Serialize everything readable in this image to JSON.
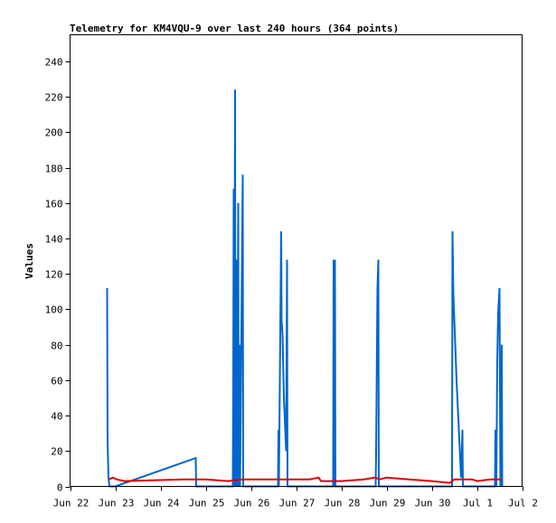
{
  "chart_data": {
    "type": "line",
    "title": "Telemetry for KM4VQU-9 over last 240 hours (364 points)",
    "xlabel": "",
    "ylabel": "Values",
    "ylim": [
      0,
      255
    ],
    "yticks": [
      0,
      20,
      40,
      60,
      80,
      100,
      120,
      140,
      160,
      180,
      200,
      220,
      240
    ],
    "xlim": [
      0,
      10
    ],
    "xticks": [
      {
        "x": 0,
        "label": "Jun 22"
      },
      {
        "x": 1,
        "label": "Jun 23"
      },
      {
        "x": 2,
        "label": "Jun 24"
      },
      {
        "x": 3,
        "label": "Jun 25"
      },
      {
        "x": 4,
        "label": "Jun 26"
      },
      {
        "x": 5,
        "label": "Jun 27"
      },
      {
        "x": 6,
        "label": "Jun 28"
      },
      {
        "x": 7,
        "label": "Jun 29"
      },
      {
        "x": 8,
        "label": "Jun 30"
      },
      {
        "x": 9,
        "label": "Jul 1"
      },
      {
        "x": 10,
        "label": "Jul 2"
      }
    ],
    "grid": false,
    "legend": "none",
    "series": [
      {
        "color": "#0066cc",
        "points": [
          [
            0.82,
            112
          ],
          [
            0.83,
            25
          ],
          [
            0.85,
            5
          ],
          [
            0.87,
            0
          ],
          [
            1.0,
            0
          ],
          [
            2.78,
            16
          ],
          [
            2.79,
            0
          ],
          [
            3.6,
            0
          ],
          [
            3.61,
            57
          ],
          [
            3.62,
            168
          ],
          [
            3.63,
            0
          ],
          [
            3.65,
            224
          ],
          [
            3.66,
            0
          ],
          [
            3.69,
            128
          ],
          [
            3.7,
            0
          ],
          [
            3.72,
            160
          ],
          [
            3.73,
            0
          ],
          [
            3.75,
            80
          ],
          [
            3.76,
            0
          ],
          [
            3.82,
            176
          ],
          [
            3.83,
            0
          ],
          [
            4.6,
            0
          ],
          [
            4.61,
            32
          ],
          [
            4.62,
            0
          ],
          [
            4.67,
            144
          ],
          [
            4.68,
            93
          ],
          [
            4.7,
            86
          ],
          [
            4.73,
            50
          ],
          [
            4.78,
            20
          ],
          [
            4.8,
            128
          ],
          [
            4.81,
            0
          ],
          [
            5.82,
            0
          ],
          [
            5.83,
            128
          ],
          [
            5.84,
            0
          ],
          [
            5.86,
            128
          ],
          [
            5.87,
            0
          ],
          [
            6.76,
            0
          ],
          [
            6.77,
            18
          ],
          [
            6.8,
            112
          ],
          [
            6.82,
            128
          ],
          [
            6.83,
            0
          ],
          [
            8.45,
            0
          ],
          [
            8.46,
            144
          ],
          [
            8.48,
            108
          ],
          [
            8.55,
            60
          ],
          [
            8.65,
            5
          ],
          [
            8.68,
            32
          ],
          [
            8.69,
            0
          ],
          [
            9.4,
            0
          ],
          [
            9.41,
            32
          ],
          [
            9.43,
            0
          ],
          [
            9.45,
            70
          ],
          [
            9.47,
            98
          ],
          [
            9.5,
            112
          ],
          [
            9.52,
            0
          ],
          [
            9.55,
            80
          ],
          [
            9.56,
            0
          ]
        ]
      },
      {
        "color": "#dd0000",
        "points": [
          [
            0.86,
            4
          ],
          [
            0.95,
            5
          ],
          [
            1.03,
            4
          ],
          [
            1.2,
            3
          ],
          [
            2.5,
            4
          ],
          [
            3.0,
            4
          ],
          [
            3.5,
            3
          ],
          [
            3.8,
            4
          ],
          [
            4.0,
            4
          ],
          [
            4.5,
            4
          ],
          [
            5.0,
            4
          ],
          [
            5.3,
            4
          ],
          [
            5.5,
            5
          ],
          [
            5.55,
            3
          ],
          [
            6.0,
            3
          ],
          [
            6.5,
            4
          ],
          [
            6.75,
            5
          ],
          [
            6.85,
            4
          ],
          [
            7.0,
            5
          ],
          [
            7.5,
            4
          ],
          [
            8.0,
            3
          ],
          [
            8.4,
            2
          ],
          [
            8.5,
            4
          ],
          [
            8.9,
            4
          ],
          [
            9.0,
            3
          ],
          [
            9.3,
            4
          ],
          [
            9.45,
            4
          ],
          [
            9.56,
            4
          ]
        ]
      },
      {
        "color": "#000000",
        "points": [
          [
            0.0,
            0
          ],
          [
            10.0,
            0
          ]
        ]
      }
    ]
  }
}
